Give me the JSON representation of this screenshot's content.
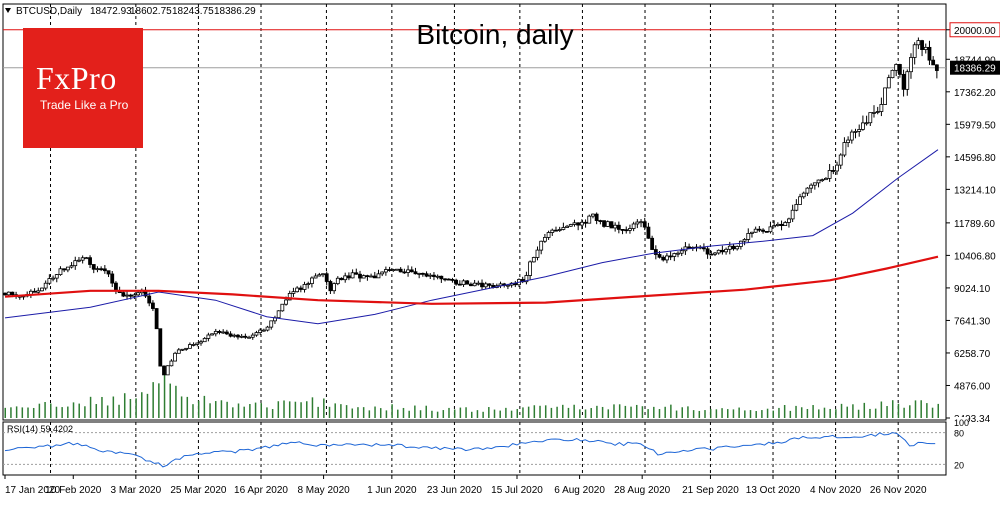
{
  "header": {
    "symbol": "BTCUSD,Daily",
    "open": "18472.93",
    "high": "18602.75",
    "low": "18243.75",
    "close": "18386.29"
  },
  "logo": {
    "wordmark": "FxPro",
    "tagline": "Trade Like a Pro"
  },
  "rsi_label": "RSI(14) 59.4202",
  "colors": {
    "background": "#ffffff",
    "candle": "#000000",
    "grid_dashed": "#000000",
    "ma_fast": "#1c1ca8",
    "ma_slow": "#e01010",
    "volume": "#2e7d32",
    "rsi_line": "#1e66d6",
    "resistance": "#e01010",
    "logo_bg": "#e3201b"
  },
  "chart_data": {
    "type": "candlestick",
    "title": "Bitcoin, daily",
    "ylim": [
      3493.34,
      20500
    ],
    "y_ticks": [
      "20000.00",
      "18744.90",
      "17362.20",
      "15979.50",
      "14596.80",
      "13214.10",
      "11789.60",
      "10406.80",
      "9024.10",
      "7641.30",
      "6258.70",
      "4876.00",
      "3493.34"
    ],
    "y_tick_values": [
      20000.0,
      18744.9,
      17362.2,
      15979.5,
      14596.8,
      13214.1,
      11789.6,
      10406.8,
      9024.1,
      7641.3,
      6258.7,
      4876.0,
      3493.34
    ],
    "current_price": "18386.29",
    "current_price_value": 18386.29,
    "resistance_level": "20000.00",
    "resistance_value": 20000.0,
    "x_ticks": [
      "17 Jan 2020",
      "10 Feb 2020",
      "3 Mar 2020",
      "25 Mar 2020",
      "16 Apr 2020",
      "8 May 2020",
      "1 Jun 2020",
      "23 Jun 2020",
      "15 Jul 2020",
      "6 Aug 2020",
      "28 Aug 2020",
      "21 Sep 2020",
      "13 Oct 2020",
      "4 Nov 2020",
      "26 Nov 2020"
    ],
    "x_tick_days": [
      0,
      24,
      46,
      68,
      90,
      112,
      136,
      158,
      180,
      202,
      224,
      248,
      270,
      292,
      314
    ],
    "dashed_gridline_days": [
      16,
      46,
      68,
      90,
      113,
      136,
      158,
      181,
      203,
      225,
      248,
      270,
      292,
      314
    ],
    "days_total": 328,
    "close_series": [
      [
        0,
        8800
      ],
      [
        6,
        8650
      ],
      [
        12,
        8900
      ],
      [
        18,
        9650
      ],
      [
        24,
        10050
      ],
      [
        28,
        10250
      ],
      [
        32,
        9850
      ],
      [
        36,
        9700
      ],
      [
        40,
        8750
      ],
      [
        44,
        8700
      ],
      [
        48,
        8900
      ],
      [
        52,
        8100
      ],
      [
        53,
        7800
      ],
      [
        54,
        6300
      ],
      [
        55,
        5200
      ],
      [
        57,
        5600
      ],
      [
        60,
        6300
      ],
      [
        66,
        6600
      ],
      [
        70,
        6900
      ],
      [
        76,
        7200
      ],
      [
        82,
        6900
      ],
      [
        86,
        7000
      ],
      [
        90,
        7200
      ],
      [
        94,
        7600
      ],
      [
        100,
        8800
      ],
      [
        104,
        9000
      ],
      [
        108,
        9400
      ],
      [
        112,
        9700
      ],
      [
        114,
        8800
      ],
      [
        116,
        9300
      ],
      [
        122,
        9600
      ],
      [
        128,
        9400
      ],
      [
        134,
        9700
      ],
      [
        138,
        9800
      ],
      [
        144,
        9600
      ],
      [
        150,
        9500
      ],
      [
        158,
        9300
      ],
      [
        164,
        9200
      ],
      [
        172,
        9150
      ],
      [
        178,
        9200
      ],
      [
        182,
        9300
      ],
      [
        186,
        10400
      ],
      [
        190,
        11300
      ],
      [
        196,
        11700
      ],
      [
        202,
        11700
      ],
      [
        206,
        12100
      ],
      [
        210,
        11800
      ],
      [
        216,
        11500
      ],
      [
        220,
        11600
      ],
      [
        222,
        11750
      ],
      [
        224,
        11700
      ],
      [
        226,
        11200
      ],
      [
        228,
        10400
      ],
      [
        232,
        10300
      ],
      [
        236,
        10500
      ],
      [
        240,
        10800
      ],
      [
        244,
        10700
      ],
      [
        248,
        10500
      ],
      [
        252,
        10600
      ],
      [
        256,
        10800
      ],
      [
        260,
        11000
      ],
      [
        262,
        11400
      ],
      [
        266,
        11500
      ],
      [
        270,
        11600
      ],
      [
        274,
        11700
      ],
      [
        276,
        12200
      ],
      [
        280,
        12900
      ],
      [
        284,
        13300
      ],
      [
        288,
        13700
      ],
      [
        292,
        14200
      ],
      [
        296,
        15300
      ],
      [
        300,
        15900
      ],
      [
        304,
        16300
      ],
      [
        308,
        16900
      ],
      [
        310,
        17800
      ],
      [
        312,
        18200
      ],
      [
        314,
        18600
      ],
      [
        316,
        17300
      ],
      [
        318,
        18600
      ],
      [
        320,
        19200
      ],
      [
        322,
        19400
      ],
      [
        324,
        19000
      ],
      [
        326,
        18700
      ],
      [
        328,
        18386.29
      ]
    ],
    "series": [
      {
        "name": "",
        "values": [
          [
            0,
            7750
          ],
          [
            30,
            8200
          ],
          [
            54,
            8850
          ],
          [
            74,
            8500
          ],
          [
            92,
            7800
          ],
          [
            110,
            7500
          ],
          [
            130,
            7900
          ],
          [
            150,
            8500
          ],
          [
            170,
            9000
          ],
          [
            190,
            9500
          ],
          [
            210,
            10100
          ],
          [
            228,
            10500
          ],
          [
            248,
            10800
          ],
          [
            266,
            11000
          ],
          [
            284,
            11250
          ],
          [
            298,
            12200
          ],
          [
            314,
            13700
          ],
          [
            328,
            14900
          ]
        ]
      },
      {
        "name": "",
        "values": [
          [
            0,
            8650
          ],
          [
            30,
            8900
          ],
          [
            54,
            8900
          ],
          [
            80,
            8750
          ],
          [
            110,
            8500
          ],
          [
            150,
            8350
          ],
          [
            190,
            8400
          ],
          [
            228,
            8700
          ],
          [
            260,
            8950
          ],
          [
            290,
            9350
          ],
          [
            310,
            9850
          ],
          [
            328,
            10350
          ]
        ]
      }
    ],
    "rsi_ylim": [
      0,
      100
    ],
    "rsi_levels": [
      "80",
      "20"
    ],
    "rsi_series": [
      [
        0,
        48
      ],
      [
        10,
        50
      ],
      [
        20,
        58
      ],
      [
        26,
        60
      ],
      [
        34,
        45
      ],
      [
        44,
        38
      ],
      [
        52,
        25
      ],
      [
        56,
        16
      ],
      [
        60,
        30
      ],
      [
        68,
        40
      ],
      [
        80,
        44
      ],
      [
        92,
        52
      ],
      [
        102,
        62
      ],
      [
        112,
        55
      ],
      [
        122,
        58
      ],
      [
        136,
        56
      ],
      [
        150,
        52
      ],
      [
        160,
        48
      ],
      [
        172,
        50
      ],
      [
        184,
        62
      ],
      [
        196,
        68
      ],
      [
        204,
        66
      ],
      [
        214,
        58
      ],
      [
        224,
        60
      ],
      [
        230,
        38
      ],
      [
        238,
        46
      ],
      [
        250,
        50
      ],
      [
        260,
        56
      ],
      [
        270,
        60
      ],
      [
        280,
        70
      ],
      [
        292,
        72
      ],
      [
        304,
        75
      ],
      [
        314,
        80
      ],
      [
        318,
        56
      ],
      [
        322,
        62
      ],
      [
        328,
        59.4
      ]
    ],
    "volume_series": [
      [
        0,
        0.25
      ],
      [
        10,
        0.3
      ],
      [
        20,
        0.35
      ],
      [
        30,
        0.4
      ],
      [
        40,
        0.45
      ],
      [
        48,
        0.5
      ],
      [
        54,
        1.0
      ],
      [
        56,
        0.9
      ],
      [
        60,
        0.6
      ],
      [
        70,
        0.45
      ],
      [
        80,
        0.35
      ],
      [
        90,
        0.3
      ],
      [
        100,
        0.35
      ],
      [
        110,
        0.4
      ],
      [
        120,
        0.3
      ],
      [
        140,
        0.25
      ],
      [
        160,
        0.2
      ],
      [
        180,
        0.22
      ],
      [
        200,
        0.3
      ],
      [
        220,
        0.28
      ],
      [
        240,
        0.25
      ],
      [
        260,
        0.22
      ],
      [
        280,
        0.25
      ],
      [
        300,
        0.28
      ],
      [
        314,
        0.35
      ],
      [
        328,
        0.32
      ]
    ]
  }
}
